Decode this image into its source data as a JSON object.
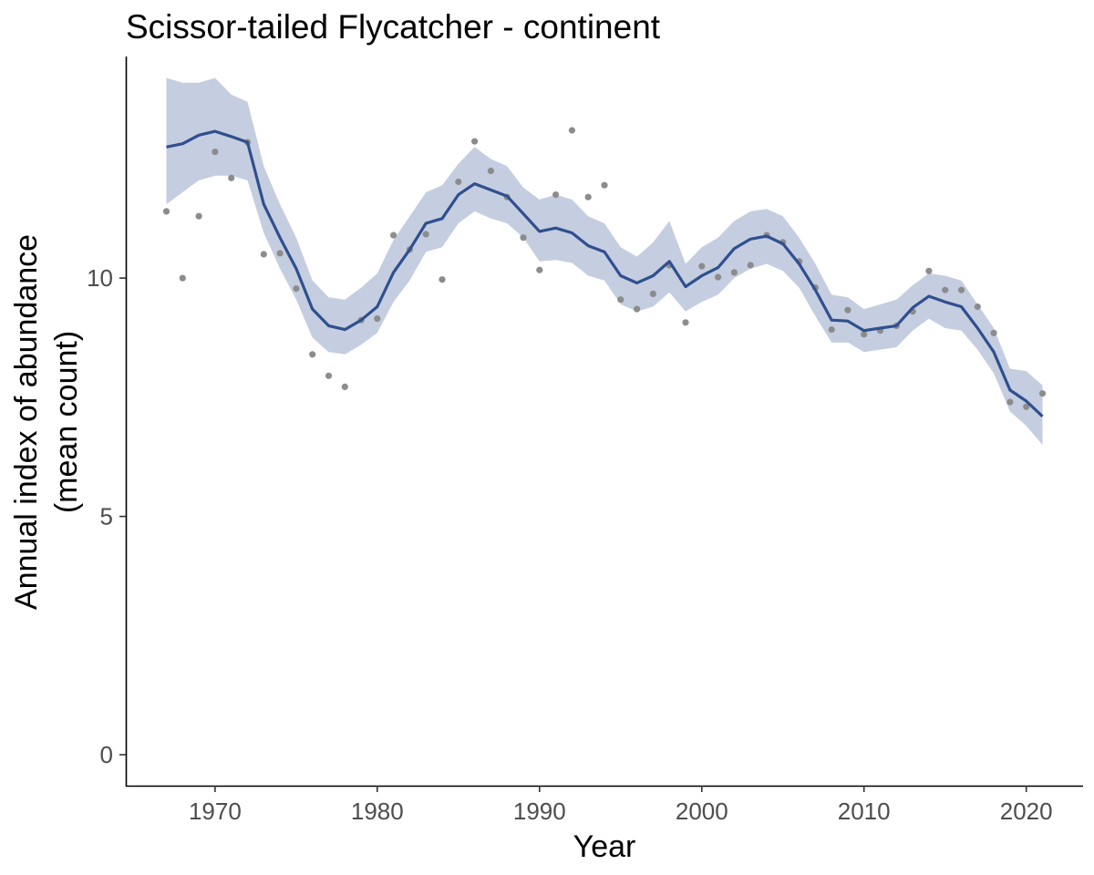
{
  "chart_data": {
    "type": "line",
    "title": "Scissor-tailed Flycatcher - continent",
    "xlabel": "Year",
    "ylabel_line1": "Annual index of abundance",
    "ylabel_line2": "(mean count)",
    "xlim": [
      1964.5,
      2023.5
    ],
    "ylim": [
      -0.65,
      14.65
    ],
    "x_ticks": [
      1970,
      1980,
      1990,
      2000,
      2010,
      2020
    ],
    "y_ticks": [
      0,
      5,
      10
    ],
    "grid": false,
    "legend": "none",
    "colors": {
      "line": "#2f4f8f",
      "band": "#c5cee0",
      "points": "#8c8c8c",
      "axis": "#000000"
    },
    "x": [
      1967,
      1968,
      1969,
      1970,
      1971,
      1972,
      1973,
      1974,
      1975,
      1976,
      1977,
      1978,
      1979,
      1980,
      1981,
      1982,
      1983,
      1984,
      1985,
      1986,
      1987,
      1988,
      1989,
      1990,
      1991,
      1992,
      1993,
      1994,
      1995,
      1996,
      1997,
      1998,
      1999,
      2000,
      2001,
      2002,
      2003,
      2004,
      2005,
      2006,
      2007,
      2008,
      2009,
      2010,
      2011,
      2012,
      2013,
      2014,
      2015,
      2016,
      2017,
      2018,
      2019,
      2020,
      2021
    ],
    "series": [
      {
        "name": "index",
        "y": [
          12.75,
          12.82,
          13.0,
          13.08,
          12.97,
          12.85,
          11.55,
          10.85,
          10.2,
          9.35,
          9.0,
          8.92,
          9.12,
          9.4,
          10.12,
          10.6,
          11.15,
          11.25,
          11.75,
          11.98,
          11.85,
          11.72,
          11.35,
          10.98,
          11.05,
          10.95,
          10.68,
          10.55,
          10.05,
          9.9,
          10.05,
          10.35,
          9.82,
          10.05,
          10.22,
          10.62,
          10.82,
          10.88,
          10.72,
          10.3,
          9.75,
          9.12,
          9.1,
          8.9,
          8.95,
          9.0,
          9.38,
          9.62,
          9.5,
          9.4,
          8.95,
          8.45,
          7.65,
          7.42,
          7.1
        ],
        "lower": [
          11.55,
          11.8,
          12.05,
          12.15,
          12.15,
          12.05,
          10.95,
          10.2,
          9.55,
          8.75,
          8.45,
          8.4,
          8.6,
          8.85,
          9.5,
          9.95,
          10.55,
          10.65,
          11.15,
          11.4,
          11.25,
          11.15,
          10.85,
          10.35,
          10.38,
          10.32,
          10.05,
          9.95,
          9.45,
          9.3,
          9.4,
          9.7,
          9.3,
          9.5,
          9.65,
          10.0,
          10.2,
          10.3,
          10.15,
          9.8,
          9.2,
          8.65,
          8.65,
          8.45,
          8.5,
          8.55,
          8.9,
          9.15,
          8.95,
          8.9,
          8.5,
          8.0,
          7.2,
          6.9,
          6.5
        ],
        "upper": [
          14.2,
          14.1,
          14.1,
          14.2,
          13.85,
          13.7,
          12.35,
          11.55,
          10.85,
          9.95,
          9.6,
          9.55,
          9.8,
          10.1,
          10.8,
          11.3,
          11.8,
          11.95,
          12.4,
          12.75,
          12.5,
          12.35,
          11.9,
          11.65,
          11.75,
          11.65,
          11.3,
          11.15,
          10.65,
          10.45,
          10.75,
          11.2,
          10.3,
          10.65,
          10.85,
          11.2,
          11.4,
          11.45,
          11.3,
          10.85,
          10.3,
          9.65,
          9.6,
          9.35,
          9.45,
          9.55,
          9.85,
          10.1,
          10.05,
          9.95,
          9.45,
          8.95,
          8.1,
          8.05,
          7.75
        ]
      },
      {
        "name": "observed",
        "points_y": [
          11.4,
          10.0,
          11.3,
          12.65,
          12.1,
          12.85,
          10.5,
          10.52,
          9.78,
          8.4,
          7.95,
          7.72,
          9.12,
          9.15,
          10.9,
          10.6,
          10.92,
          9.97,
          12.02,
          12.87,
          12.25,
          11.7,
          10.85,
          10.17,
          11.75,
          13.1,
          11.7,
          11.95,
          9.55,
          9.35,
          9.67,
          10.27,
          9.07,
          10.25,
          10.02,
          10.12,
          10.27,
          10.9,
          10.75,
          10.35,
          9.8,
          8.92,
          9.33,
          8.82,
          8.9,
          9.0,
          9.3,
          10.15,
          9.75,
          9.75,
          9.4,
          8.85,
          7.4,
          7.3,
          7.58
        ]
      }
    ]
  }
}
